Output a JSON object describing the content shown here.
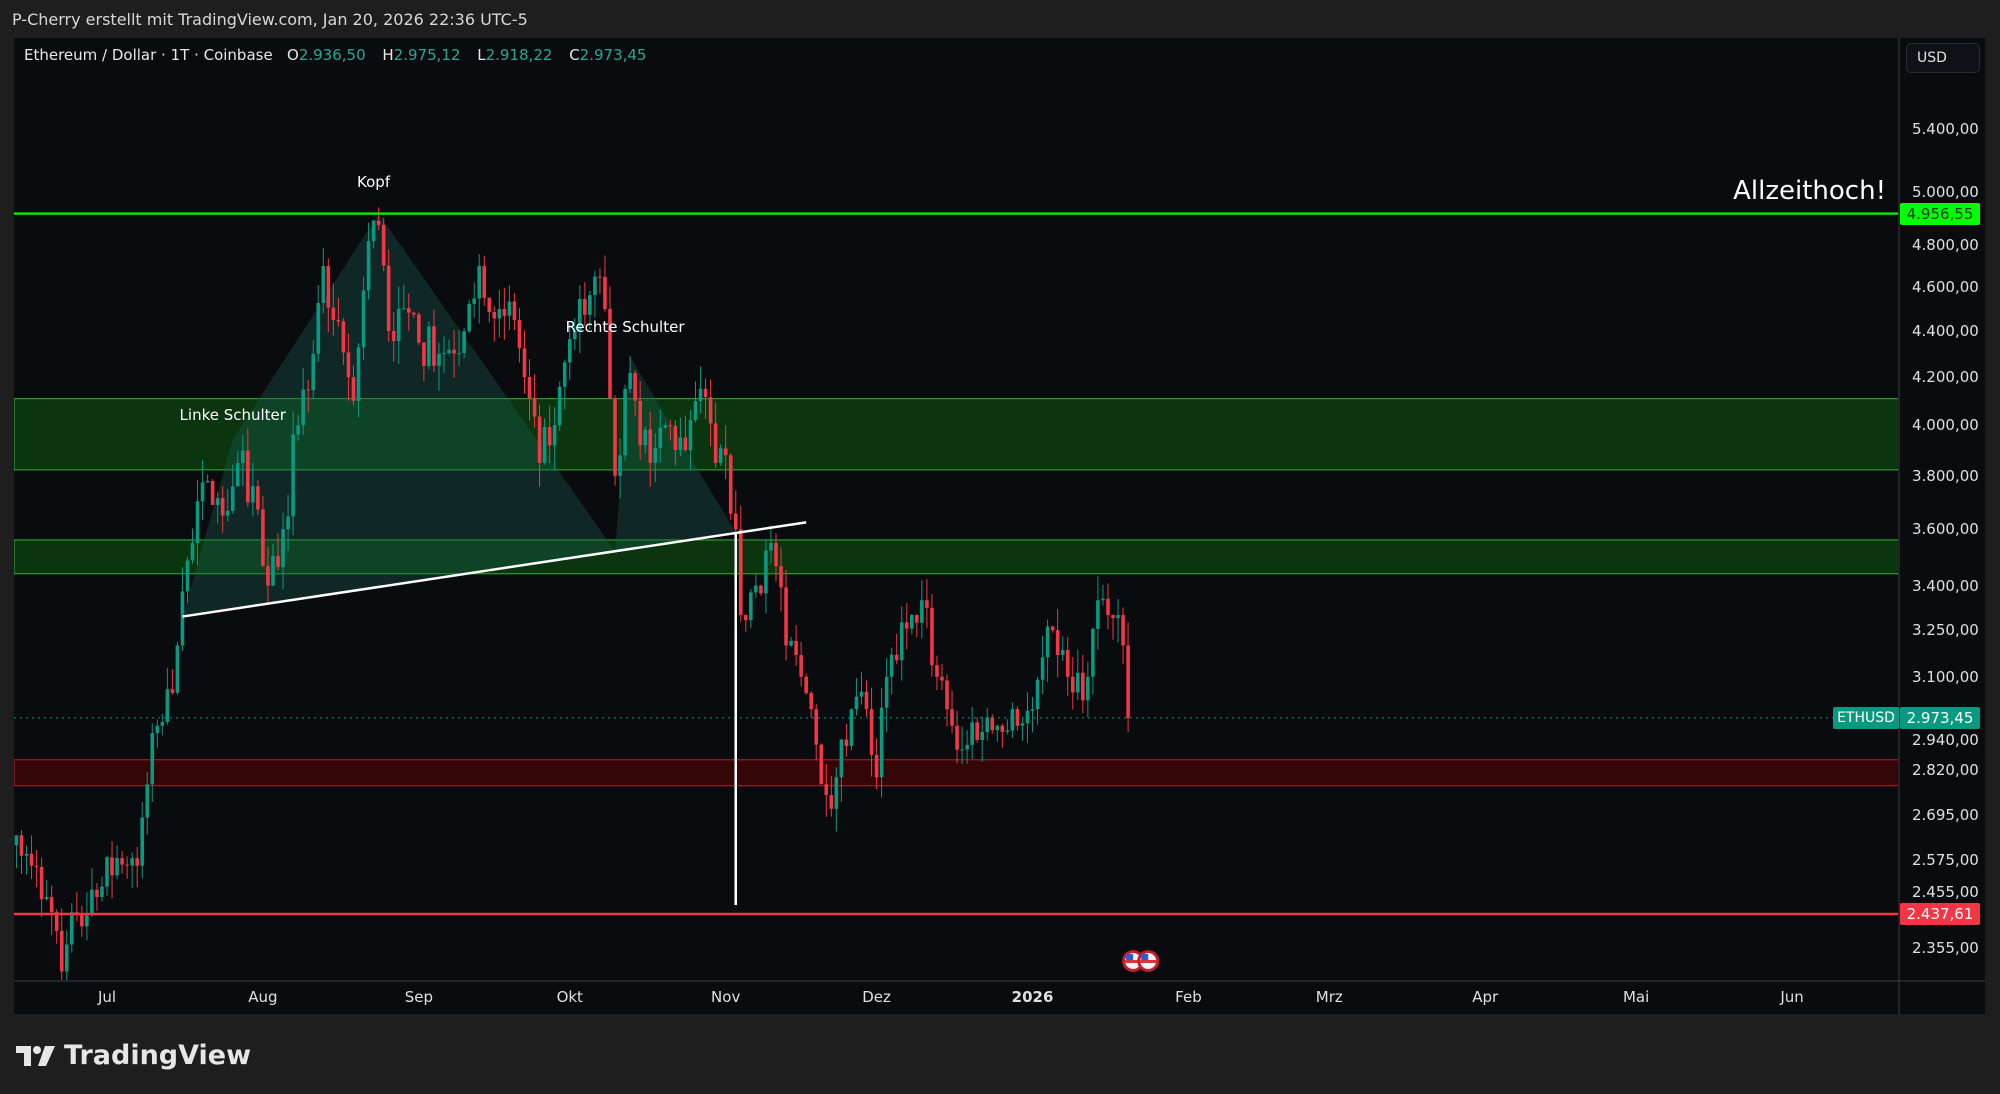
{
  "attribution": "P-Cherry erstellt mit TradingView.com, Jan 20, 2026 22:36 UTC-5",
  "legend": {
    "symbol": "Ethereum / Dollar · 1T · Coinbase",
    "open_label": "O",
    "open": "2.936,50",
    "high_label": "H",
    "high": "2.975,12",
    "low_label": "L",
    "low": "2.918,22",
    "close_label": "C",
    "close": "2.973,45"
  },
  "currency_button": "USD",
  "price_axis_ticks": [
    "5.400,00",
    "5.000,00",
    "4.800,00",
    "4.600,00",
    "4.400,00",
    "4.200,00",
    "4.000,00",
    "3.800,00",
    "3.600,00",
    "3.400,00",
    "3.250,00",
    "3.100,00",
    "2.940,00",
    "2.820,00",
    "2.695,00",
    "2.575,00",
    "2.455,00",
    "2.355,00"
  ],
  "price_labels": {
    "ath": "4.956,55",
    "current": "2.973,45",
    "support": "2.437,61",
    "symbol_tag": "ETHUSD"
  },
  "time_axis_ticks": [
    {
      "label": "Jul",
      "date": "2025-07-01"
    },
    {
      "label": "Aug",
      "date": "2025-08-01"
    },
    {
      "label": "Sep",
      "date": "2025-09-01"
    },
    {
      "label": "Okt",
      "date": "2025-10-01"
    },
    {
      "label": "Nov",
      "date": "2025-11-01"
    },
    {
      "label": "Dez",
      "date": "2025-12-01"
    },
    {
      "label": "2026",
      "date": "2026-01-01",
      "bold": true
    },
    {
      "label": "Feb",
      "date": "2026-02-01"
    },
    {
      "label": "Mrz",
      "date": "2026-03-01"
    },
    {
      "label": "Apr",
      "date": "2026-04-01"
    },
    {
      "label": "Mai",
      "date": "2026-05-01"
    },
    {
      "label": "Jun",
      "date": "2026-06-01"
    }
  ],
  "annotations": {
    "head": "Kopf",
    "left_shoulder": "Linke Schulter",
    "right_shoulder": "Rechte Schulter",
    "ath_text": "Allzeithoch!"
  },
  "colors": {
    "up": "#089981",
    "down": "#f23645",
    "ath_line": "#00e600",
    "support_line": "#f23645",
    "zone_green": "#0b3d0f",
    "zone_red": "#3a0508"
  },
  "chart_data": {
    "type": "candlestick",
    "scale": "log",
    "price_range": [
      2300,
      5700
    ],
    "price_path": [
      [
        "2025-06-13",
        2640
      ],
      [
        "2025-06-16",
        2560
      ],
      [
        "2025-06-19",
        2480
      ],
      [
        "2025-06-22",
        2300
      ],
      [
        "2025-06-25",
        2440
      ],
      [
        "2025-06-29",
        2480
      ],
      [
        "2025-07-03",
        2580
      ],
      [
        "2025-07-07",
        2560
      ],
      [
        "2025-07-09",
        2780
      ],
      [
        "2025-07-11",
        2950
      ],
      [
        "2025-07-14",
        3050
      ],
      [
        "2025-07-16",
        3380
      ],
      [
        "2025-07-18",
        3550
      ],
      [
        "2025-07-21",
        3780
      ],
      [
        "2025-07-24",
        3650
      ],
      [
        "2025-07-27",
        3850
      ],
      [
        "2025-07-30",
        3760
      ],
      [
        "2025-08-02",
        3400
      ],
      [
        "2025-08-05",
        3600
      ],
      [
        "2025-08-08",
        4000
      ],
      [
        "2025-08-11",
        4300
      ],
      [
        "2025-08-13",
        4700
      ],
      [
        "2025-08-15",
        4450
      ],
      [
        "2025-08-19",
        4100
      ],
      [
        "2025-08-22",
        4820
      ],
      [
        "2025-08-24",
        4900
      ],
      [
        "2025-08-26",
        4400
      ],
      [
        "2025-08-28",
        4500
      ],
      [
        "2025-09-01",
        4350
      ],
      [
        "2025-09-05",
        4300
      ],
      [
        "2025-09-10",
        4400
      ],
      [
        "2025-09-13",
        4700
      ],
      [
        "2025-09-17",
        4500
      ],
      [
        "2025-09-20",
        4450
      ],
      [
        "2025-09-22",
        4200
      ],
      [
        "2025-09-25",
        3850
      ],
      [
        "2025-09-28",
        4000
      ],
      [
        "2025-10-02",
        4400
      ],
      [
        "2025-10-06",
        4650
      ],
      [
        "2025-10-08",
        4500
      ],
      [
        "2025-10-10",
        3800
      ],
      [
        "2025-10-12",
        4150
      ],
      [
        "2025-10-14",
        4100
      ],
      [
        "2025-10-17",
        3850
      ],
      [
        "2025-10-20",
        4000
      ],
      [
        "2025-10-24",
        3900
      ],
      [
        "2025-10-27",
        4150
      ],
      [
        "2025-10-30",
        3850
      ],
      [
        "2025-11-01",
        3880
      ],
      [
        "2025-11-03",
        3600
      ],
      [
        "2025-11-04",
        3300
      ],
      [
        "2025-11-07",
        3400
      ],
      [
        "2025-11-10",
        3550
      ],
      [
        "2025-11-13",
        3200
      ],
      [
        "2025-11-16",
        3100
      ],
      [
        "2025-11-18",
        3000
      ],
      [
        "2025-11-21",
        2750
      ],
      [
        "2025-11-23",
        2800
      ],
      [
        "2025-11-26",
        3000
      ],
      [
        "2025-11-29",
        3000
      ],
      [
        "2025-12-01",
        2800
      ],
      [
        "2025-12-03",
        3100
      ],
      [
        "2025-12-08",
        3300
      ],
      [
        "2025-12-10",
        3350
      ],
      [
        "2025-12-13",
        3100
      ],
      [
        "2025-12-16",
        2950
      ],
      [
        "2025-12-18",
        2880
      ],
      [
        "2025-12-20",
        2960
      ],
      [
        "2025-12-25",
        2950
      ],
      [
        "2025-12-29",
        2950
      ],
      [
        "2026-01-01",
        3000
      ],
      [
        "2026-01-05",
        3250
      ],
      [
        "2026-01-08",
        3100
      ],
      [
        "2026-01-12",
        3100
      ],
      [
        "2026-01-14",
        3350
      ],
      [
        "2026-01-16",
        3300
      ],
      [
        "2026-01-18",
        3300
      ],
      [
        "2026-01-19",
        3200
      ],
      [
        "2026-01-20",
        2973.45
      ]
    ],
    "horizontal_lines": [
      {
        "name": "ath",
        "price": 4956.55
      },
      {
        "name": "support",
        "price": 2437.61
      }
    ],
    "zones": [
      {
        "name": "resistance-zone-upper",
        "from": 3823,
        "to": 4109,
        "color": "green"
      },
      {
        "name": "resistance-zone-lower",
        "from": 3441,
        "to": 3561,
        "color": "green"
      },
      {
        "name": "support-zone",
        "from": 2776,
        "to": 2850,
        "color": "red"
      }
    ],
    "neckline": [
      [
        "2025-07-16",
        3295
      ],
      [
        "2025-11-17",
        3625
      ]
    ],
    "measured_move": [
      [
        "2025-11-03",
        3590
      ],
      [
        "2025-11-03",
        2460
      ]
    ],
    "head_shoulders_shading": [
      [
        [
          "2025-07-16",
          3295
        ],
        [
          "2025-07-26",
          3941
        ],
        [
          "2025-08-24",
          4955
        ],
        [
          "2025-10-10",
          3520
        ]
      ],
      [
        [
          "2025-10-10",
          3520
        ],
        [
          "2025-10-13",
          4286
        ],
        [
          "2025-11-03",
          3588
        ]
      ]
    ],
    "annotation_points": {
      "head": [
        "2025-08-23",
        5120
      ],
      "left_shoulder": [
        "2025-07-26",
        4040
      ],
      "right_shoulder": [
        "2025-10-12",
        4420
      ]
    },
    "event_markers": [
      "2026-01-21",
      "2026-01-24"
    ]
  }
}
